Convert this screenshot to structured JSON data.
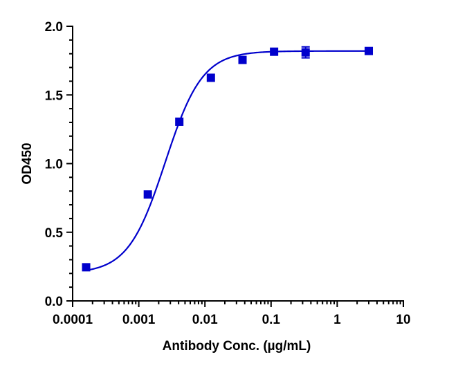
{
  "chart_data": {
    "type": "scatter",
    "title": "",
    "xlabel": "Antibody Conc. (µg/mL)",
    "ylabel": "OD450",
    "x_scale": "log",
    "xlim": [
      0.0001,
      10
    ],
    "ylim": [
      0.0,
      2.0
    ],
    "x_ticks": [
      "0.0001",
      "0.001",
      "0.01",
      "0.1",
      "1",
      "10"
    ],
    "y_ticks": [
      "0.0",
      "0.5",
      "1.0",
      "1.5",
      "2.0"
    ],
    "grid": false,
    "legend": "none",
    "series": [
      {
        "color": "#0000cc",
        "marker": "square",
        "x": [
          0.00016,
          0.00137,
          0.0041,
          0.0123,
          0.037,
          0.111,
          0.333,
          3.0
        ],
        "y": [
          0.245,
          0.775,
          1.305,
          1.625,
          1.755,
          1.815,
          1.81,
          1.82
        ],
        "error": [
          0,
          0,
          0,
          0,
          0,
          0,
          0.04,
          0
        ]
      }
    ],
    "fit_curve": {
      "color": "#0000cc",
      "bottom": 0.2,
      "top": 1.82,
      "logEC50": -2.6,
      "hill": 1.55
    }
  }
}
